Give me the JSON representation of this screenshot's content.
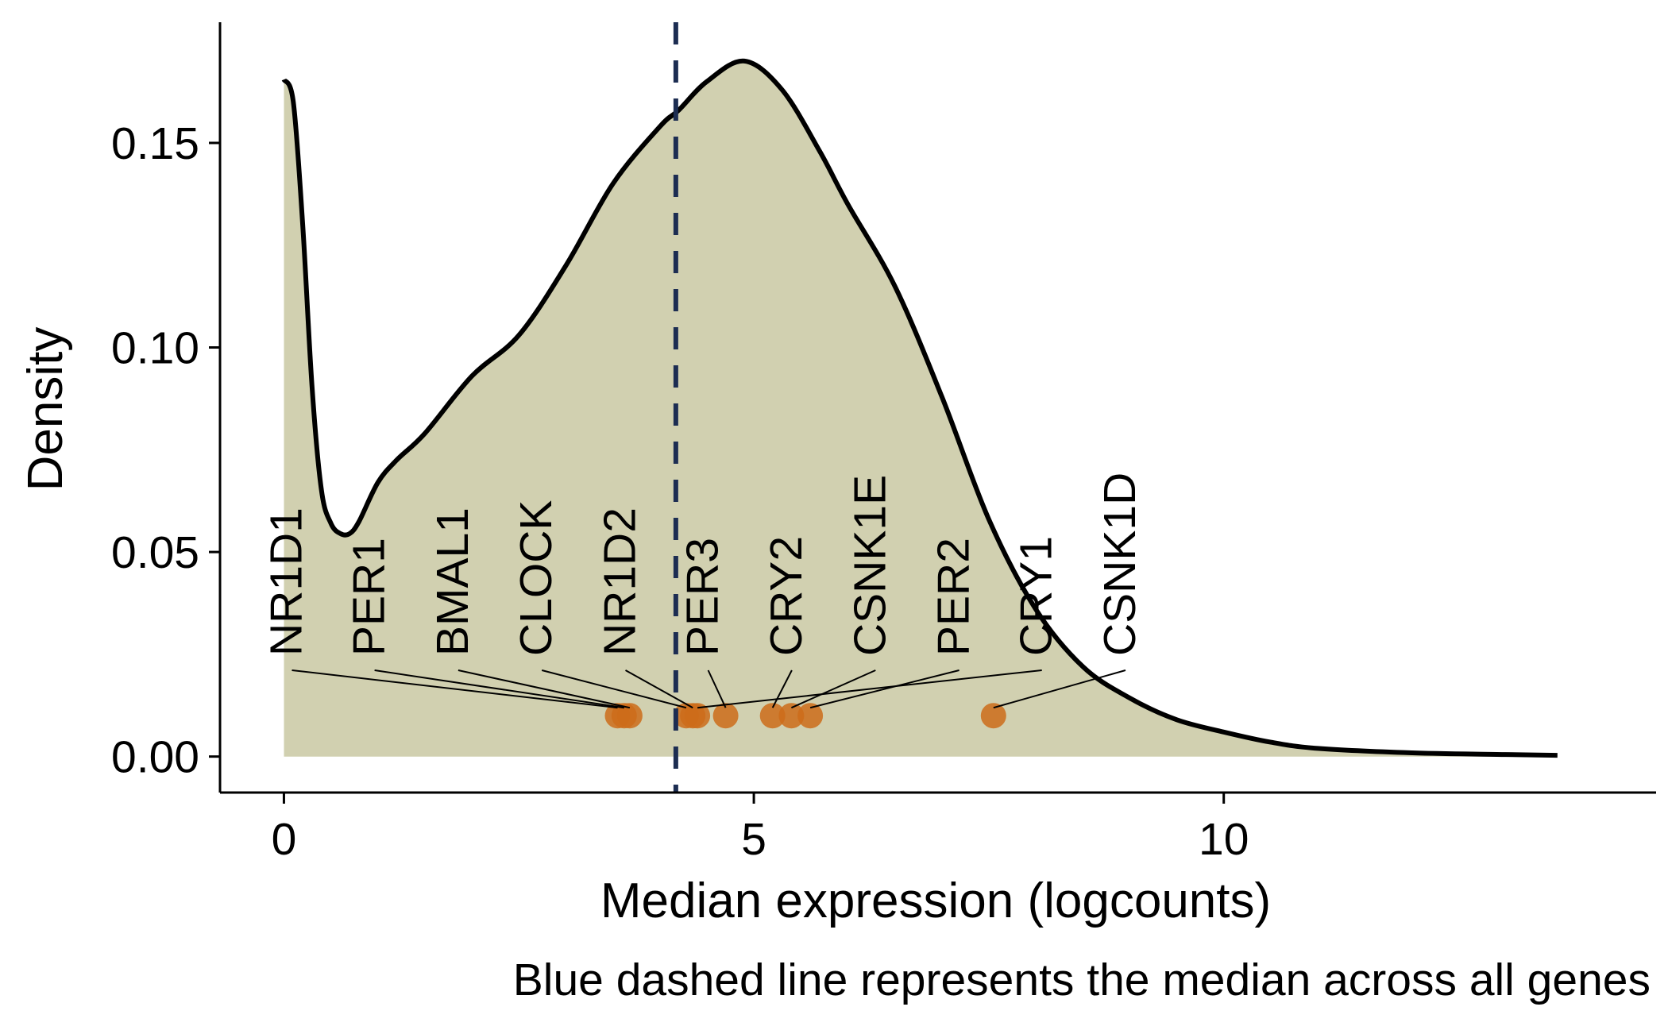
{
  "chart_data": {
    "type": "area",
    "xlabel": "Median expression (logcounts)",
    "ylabel": "Density",
    "caption": "Blue dashed line represents the median across all genes",
    "xlim": [
      -0.68,
      14.6
    ],
    "ylim": [
      -0.0088,
      0.1795
    ],
    "xticks": [
      0,
      5,
      10
    ],
    "xtick_labels": [
      "0",
      "5",
      "10"
    ],
    "yticks": [
      0.0,
      0.05,
      0.1,
      0.15
    ],
    "ytick_labels": [
      "0.00",
      "0.05",
      "0.10",
      "0.15"
    ],
    "grid": false,
    "density": {
      "x": [
        0,
        0.1,
        0.2,
        0.3,
        0.4,
        0.5,
        0.6,
        0.7,
        0.8,
        1.0,
        1.2,
        1.5,
        2.0,
        2.5,
        3.0,
        3.5,
        4.0,
        4.2,
        4.5,
        4.9,
        5.3,
        5.7,
        6.0,
        6.5,
        7.0,
        7.5,
        8.0,
        8.5,
        9.0,
        9.5,
        10.0,
        10.5,
        11.0,
        12.0,
        13.0,
        13.55
      ],
      "y": [
        0.1655,
        0.16,
        0.13,
        0.09,
        0.065,
        0.057,
        0.0545,
        0.0545,
        0.0575,
        0.067,
        0.0725,
        0.079,
        0.093,
        0.103,
        0.12,
        0.14,
        0.154,
        0.158,
        0.165,
        0.17,
        0.163,
        0.148,
        0.135,
        0.115,
        0.088,
        0.058,
        0.036,
        0.022,
        0.0143,
        0.009,
        0.006,
        0.0035,
        0.002,
        0.0009,
        0.0005,
        0.0003
      ]
    },
    "fill_color": "#d1d0b0",
    "line_color": "#000000",
    "median_line": {
      "x": 4.17,
      "color": "#1c2d52"
    },
    "points": {
      "color": "#cc6c1a",
      "y": 0.01,
      "genes": [
        {
          "label": "NR1D1",
          "x": 3.55
        },
        {
          "label": "PER1",
          "x": 3.62
        },
        {
          "label": "BMAL1",
          "x": 3.68
        },
        {
          "label": "CLOCK",
          "x": 4.28
        },
        {
          "label": "NR1D2",
          "x": 4.35
        },
        {
          "label": "PER3",
          "x": 4.7
        },
        {
          "label": "CRY2",
          "x": 5.2
        },
        {
          "label": "CSNK1E",
          "x": 5.4
        },
        {
          "label": "PER2",
          "x": 5.6
        },
        {
          "label": "CRY1",
          "x": 4.4
        },
        {
          "label": "CSNK1D",
          "x": 7.55
        }
      ],
      "label_x": [
        0.0,
        0.88,
        1.77,
        2.66,
        3.55,
        4.43,
        5.32,
        6.21,
        7.1,
        7.98,
        8.87
      ]
    }
  }
}
